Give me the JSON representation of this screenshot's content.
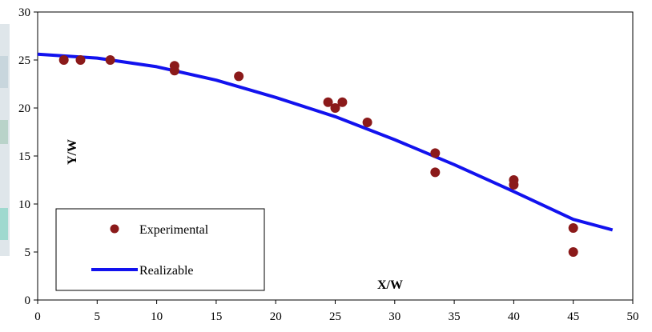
{
  "chart_data": {
    "type": "scatter",
    "title": "",
    "xlabel": "X/W",
    "ylabel": "Y/W",
    "xlim": [
      0,
      50
    ],
    "ylim": [
      0,
      30
    ],
    "xticks": [
      "0",
      "5",
      "10",
      "15",
      "20",
      "25",
      "30",
      "35",
      "40",
      "45",
      "50"
    ],
    "yticks": [
      "0",
      "5",
      "10",
      "15",
      "20",
      "25",
      "30"
    ],
    "grid": false,
    "legend_position": "bottom-left",
    "series": [
      {
        "name": "Experimental",
        "kind": "scatter",
        "color": "#8B1A1A",
        "points": [
          {
            "x": 2.2,
            "y": 25.0
          },
          {
            "x": 3.6,
            "y": 25.0
          },
          {
            "x": 6.1,
            "y": 25.0
          },
          {
            "x": 11.5,
            "y": 24.4
          },
          {
            "x": 11.5,
            "y": 23.9
          },
          {
            "x": 16.9,
            "y": 23.3
          },
          {
            "x": 24.4,
            "y": 20.6
          },
          {
            "x": 25.0,
            "y": 20.0
          },
          {
            "x": 25.6,
            "y": 20.6
          },
          {
            "x": 27.7,
            "y": 18.5
          },
          {
            "x": 33.4,
            "y": 15.3
          },
          {
            "x": 33.4,
            "y": 13.3
          },
          {
            "x": 40.0,
            "y": 12.5
          },
          {
            "x": 40.0,
            "y": 12.0
          },
          {
            "x": 45.0,
            "y": 7.5
          },
          {
            "x": 45.0,
            "y": 5.0
          }
        ]
      },
      {
        "name": "Realizable",
        "kind": "line",
        "color": "#1212EE",
        "points": [
          {
            "x": 0,
            "y": 25.6
          },
          {
            "x": 5,
            "y": 25.2
          },
          {
            "x": 10,
            "y": 24.3
          },
          {
            "x": 15,
            "y": 22.9
          },
          {
            "x": 20,
            "y": 21.1
          },
          {
            "x": 25,
            "y": 19.1
          },
          {
            "x": 30,
            "y": 16.7
          },
          {
            "x": 35,
            "y": 14.1
          },
          {
            "x": 40,
            "y": 11.3
          },
          {
            "x": 45,
            "y": 8.4
          },
          {
            "x": 48.3,
            "y": 7.3
          }
        ]
      }
    ]
  }
}
